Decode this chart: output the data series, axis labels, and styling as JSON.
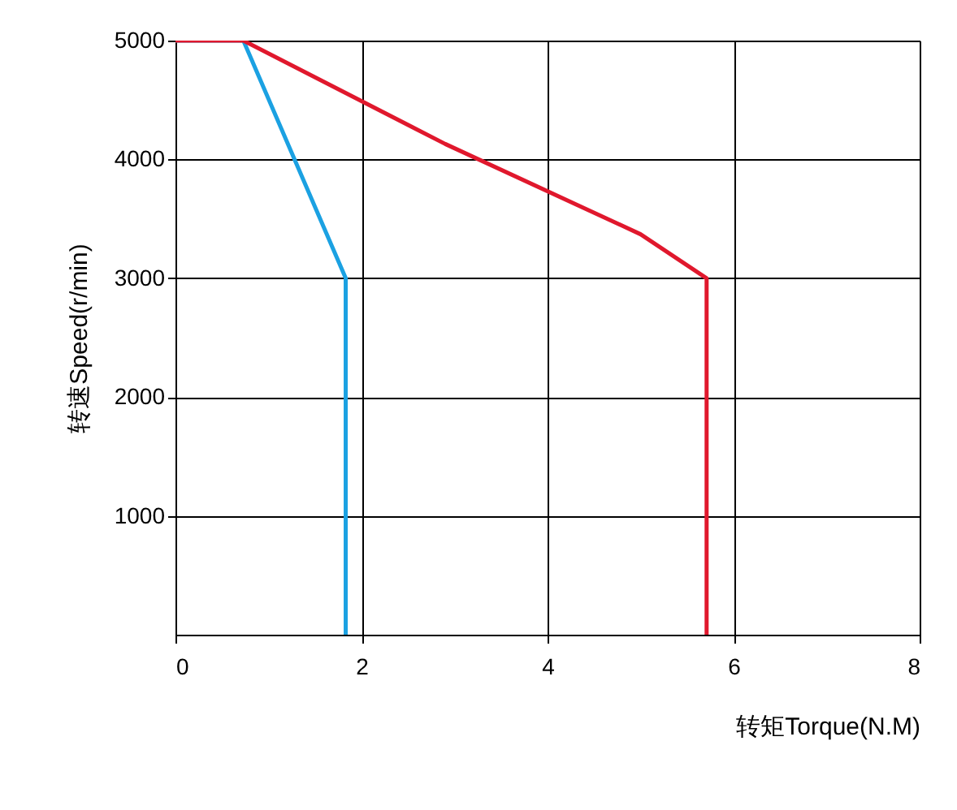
{
  "chart_data": {
    "type": "line",
    "xlabel": "转矩Torque(N.M)",
    "ylabel": "转速Speed(r/min)",
    "xlim": [
      0,
      8
    ],
    "xticks": [
      0,
      2,
      4,
      6,
      8
    ],
    "ylim": [
      0,
      5000
    ],
    "yticks": [
      1000,
      2000,
      3000,
      4000,
      5000
    ],
    "grid": true,
    "legend": false,
    "marker": "none",
    "line_style": "solid",
    "series": [
      {
        "color": "#1ba1e2",
        "x": [
          0,
          0.73,
          1.83,
          1.83
        ],
        "values": [
          5000,
          5000,
          3000,
          0
        ]
      },
      {
        "color": "#e0182d",
        "x": [
          0,
          0.73,
          2.9,
          5.0,
          5.71,
          5.71
        ],
        "values": [
          5000,
          5000,
          4130,
          3370,
          3000,
          0
        ]
      }
    ]
  }
}
